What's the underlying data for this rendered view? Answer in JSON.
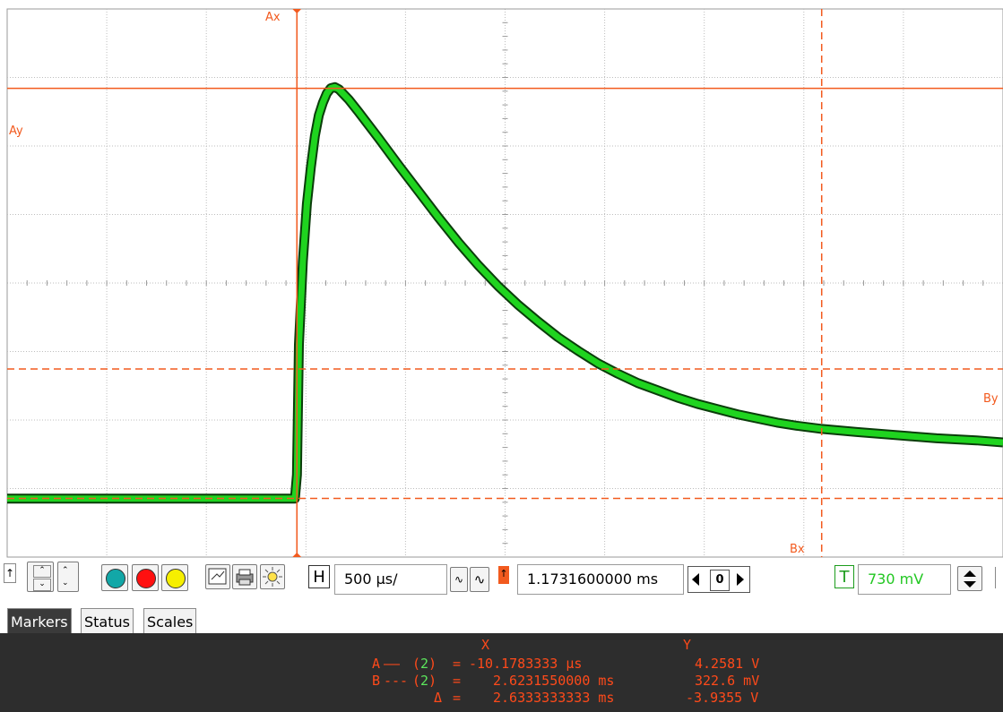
{
  "scope": {
    "trace_color": "#1fd41f",
    "marker_color": "#f25a1e",
    "grid_color": "#bdbdbd",
    "background": "#ffffff",
    "cursor_labels": {
      "ax": "Ax",
      "ay": "Ay",
      "bx": "Bx",
      "by": "By"
    }
  },
  "chart_data": {
    "type": "line",
    "x_unit": "µs",
    "y_unit": "V",
    "xlim": [
      -1464,
      3533
    ],
    "ylim": [
      -0.24,
      5.02
    ],
    "series": [
      {
        "values": [
          [
            -1464,
            0.32
          ],
          [
            -1300,
            0.32
          ],
          [
            -1100,
            0.32
          ],
          [
            -900,
            0.32
          ],
          [
            -700,
            0.32
          ],
          [
            -500,
            0.32
          ],
          [
            -300,
            0.32
          ],
          [
            -100,
            0.32
          ],
          [
            -20,
            0.32
          ],
          [
            -10,
            0.55
          ],
          [
            0,
            1.8
          ],
          [
            20,
            2.6
          ],
          [
            40,
            3.15
          ],
          [
            60,
            3.5
          ],
          [
            80,
            3.8
          ],
          [
            100,
            4.0
          ],
          [
            120,
            4.12
          ],
          [
            140,
            4.21
          ],
          [
            160,
            4.26
          ],
          [
            180,
            4.27
          ],
          [
            200,
            4.25
          ],
          [
            250,
            4.15
          ],
          [
            300,
            4.03
          ],
          [
            400,
            3.78
          ],
          [
            500,
            3.52
          ],
          [
            600,
            3.27
          ],
          [
            700,
            3.02
          ],
          [
            800,
            2.78
          ],
          [
            900,
            2.56
          ],
          [
            1000,
            2.36
          ],
          [
            1100,
            2.18
          ],
          [
            1200,
            2.02
          ],
          [
            1300,
            1.87
          ],
          [
            1400,
            1.74
          ],
          [
            1500,
            1.62
          ],
          [
            1600,
            1.52
          ],
          [
            1700,
            1.43
          ],
          [
            1800,
            1.36
          ],
          [
            1900,
            1.29
          ],
          [
            2000,
            1.23
          ],
          [
            2100,
            1.18
          ],
          [
            2200,
            1.13
          ],
          [
            2300,
            1.09
          ],
          [
            2400,
            1.05
          ],
          [
            2500,
            1.02
          ],
          [
            2623,
            0.99
          ],
          [
            2800,
            0.96
          ],
          [
            3000,
            0.93
          ],
          [
            3200,
            0.9
          ],
          [
            3400,
            0.88
          ],
          [
            3533,
            0.86
          ]
        ]
      }
    ],
    "cursors": {
      "ax": -10.18,
      "ay": 4.2581,
      "bx": 2623.155,
      "by": 0.3226
    }
  },
  "toolbar": {
    "h_label": "H",
    "timebase": "500 µs/",
    "trigger_offset": "1.1731600000 ms",
    "offset_zero": "0",
    "t_label": "T",
    "trigger_level": "730 mV",
    "channel_colors": [
      "#12a7a7",
      "#ff1010",
      "#f6ef00"
    ]
  },
  "tabs": [
    "Markers",
    "Status",
    "Scales"
  ],
  "markers": {
    "col_x": "X",
    "col_y": "Y",
    "rows": [
      {
        "name": "A",
        "line": "——",
        "channel": "2",
        "eq": "=",
        "x": "-10.1783333 µs",
        "y": "4.2581 V"
      },
      {
        "name": "B",
        "line": "---",
        "channel": "2",
        "eq": "=",
        "x": "2.6231550000 ms",
        "y": "322.6 mV"
      },
      {
        "name": "Δ",
        "eq": "=",
        "x": "2.6333333333 ms",
        "y": "-3.9355 V"
      }
    ]
  }
}
